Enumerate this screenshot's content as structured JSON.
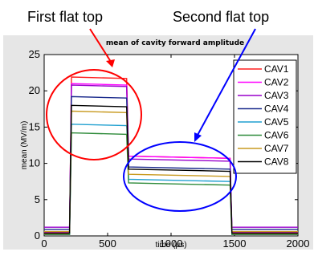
{
  "annotations": {
    "first": "First flat top",
    "second": "Second flat top",
    "first_color": "#ff0000",
    "second_color": "#0000ff"
  },
  "chart_data": {
    "type": "line",
    "title": "mean of cavity forward amplitude",
    "xlabel": "time (μs)",
    "ylabel": "mean (MV/m)",
    "xlim": [
      0,
      2000
    ],
    "ylim": [
      0,
      25
    ],
    "xticks": [
      "0",
      "500",
      "1000",
      "1500",
      "2000"
    ],
    "yticks": [
      "0",
      "5",
      "10",
      "15",
      "20",
      "25"
    ],
    "grid": false,
    "legend_position": "top-right",
    "segment_times": [
      0,
      200,
      215,
      650,
      665,
      1465,
      1480,
      2000
    ],
    "series": [
      {
        "name": "CAV1",
        "color": "#ff2020",
        "levels": [
          0.3,
          21.9,
          11.0,
          0.3
        ]
      },
      {
        "name": "CAV2",
        "color": "#ff00ff",
        "levels": [
          0.5,
          21.0,
          11.0,
          0.5
        ]
      },
      {
        "name": "CAV3",
        "color": "#9900cc",
        "levels": [
          1.2,
          20.8,
          10.6,
          1.2
        ]
      },
      {
        "name": "CAV4",
        "color": "#1a2a8c",
        "levels": [
          0.9,
          19.2,
          9.5,
          0.9
        ]
      },
      {
        "name": "CAV5",
        "color": "#20a0d0",
        "levels": [
          0.2,
          15.4,
          7.8,
          0.2
        ]
      },
      {
        "name": "CAV6",
        "color": "#2e8b3a",
        "levels": [
          0.2,
          14.2,
          7.3,
          0.2
        ]
      },
      {
        "name": "CAV7",
        "color": "#c89a20",
        "levels": [
          0.6,
          17.2,
          8.5,
          0.6
        ]
      },
      {
        "name": "CAV8",
        "color": "#000000",
        "levels": [
          0.4,
          18.0,
          9.2,
          0.4
        ]
      }
    ]
  }
}
